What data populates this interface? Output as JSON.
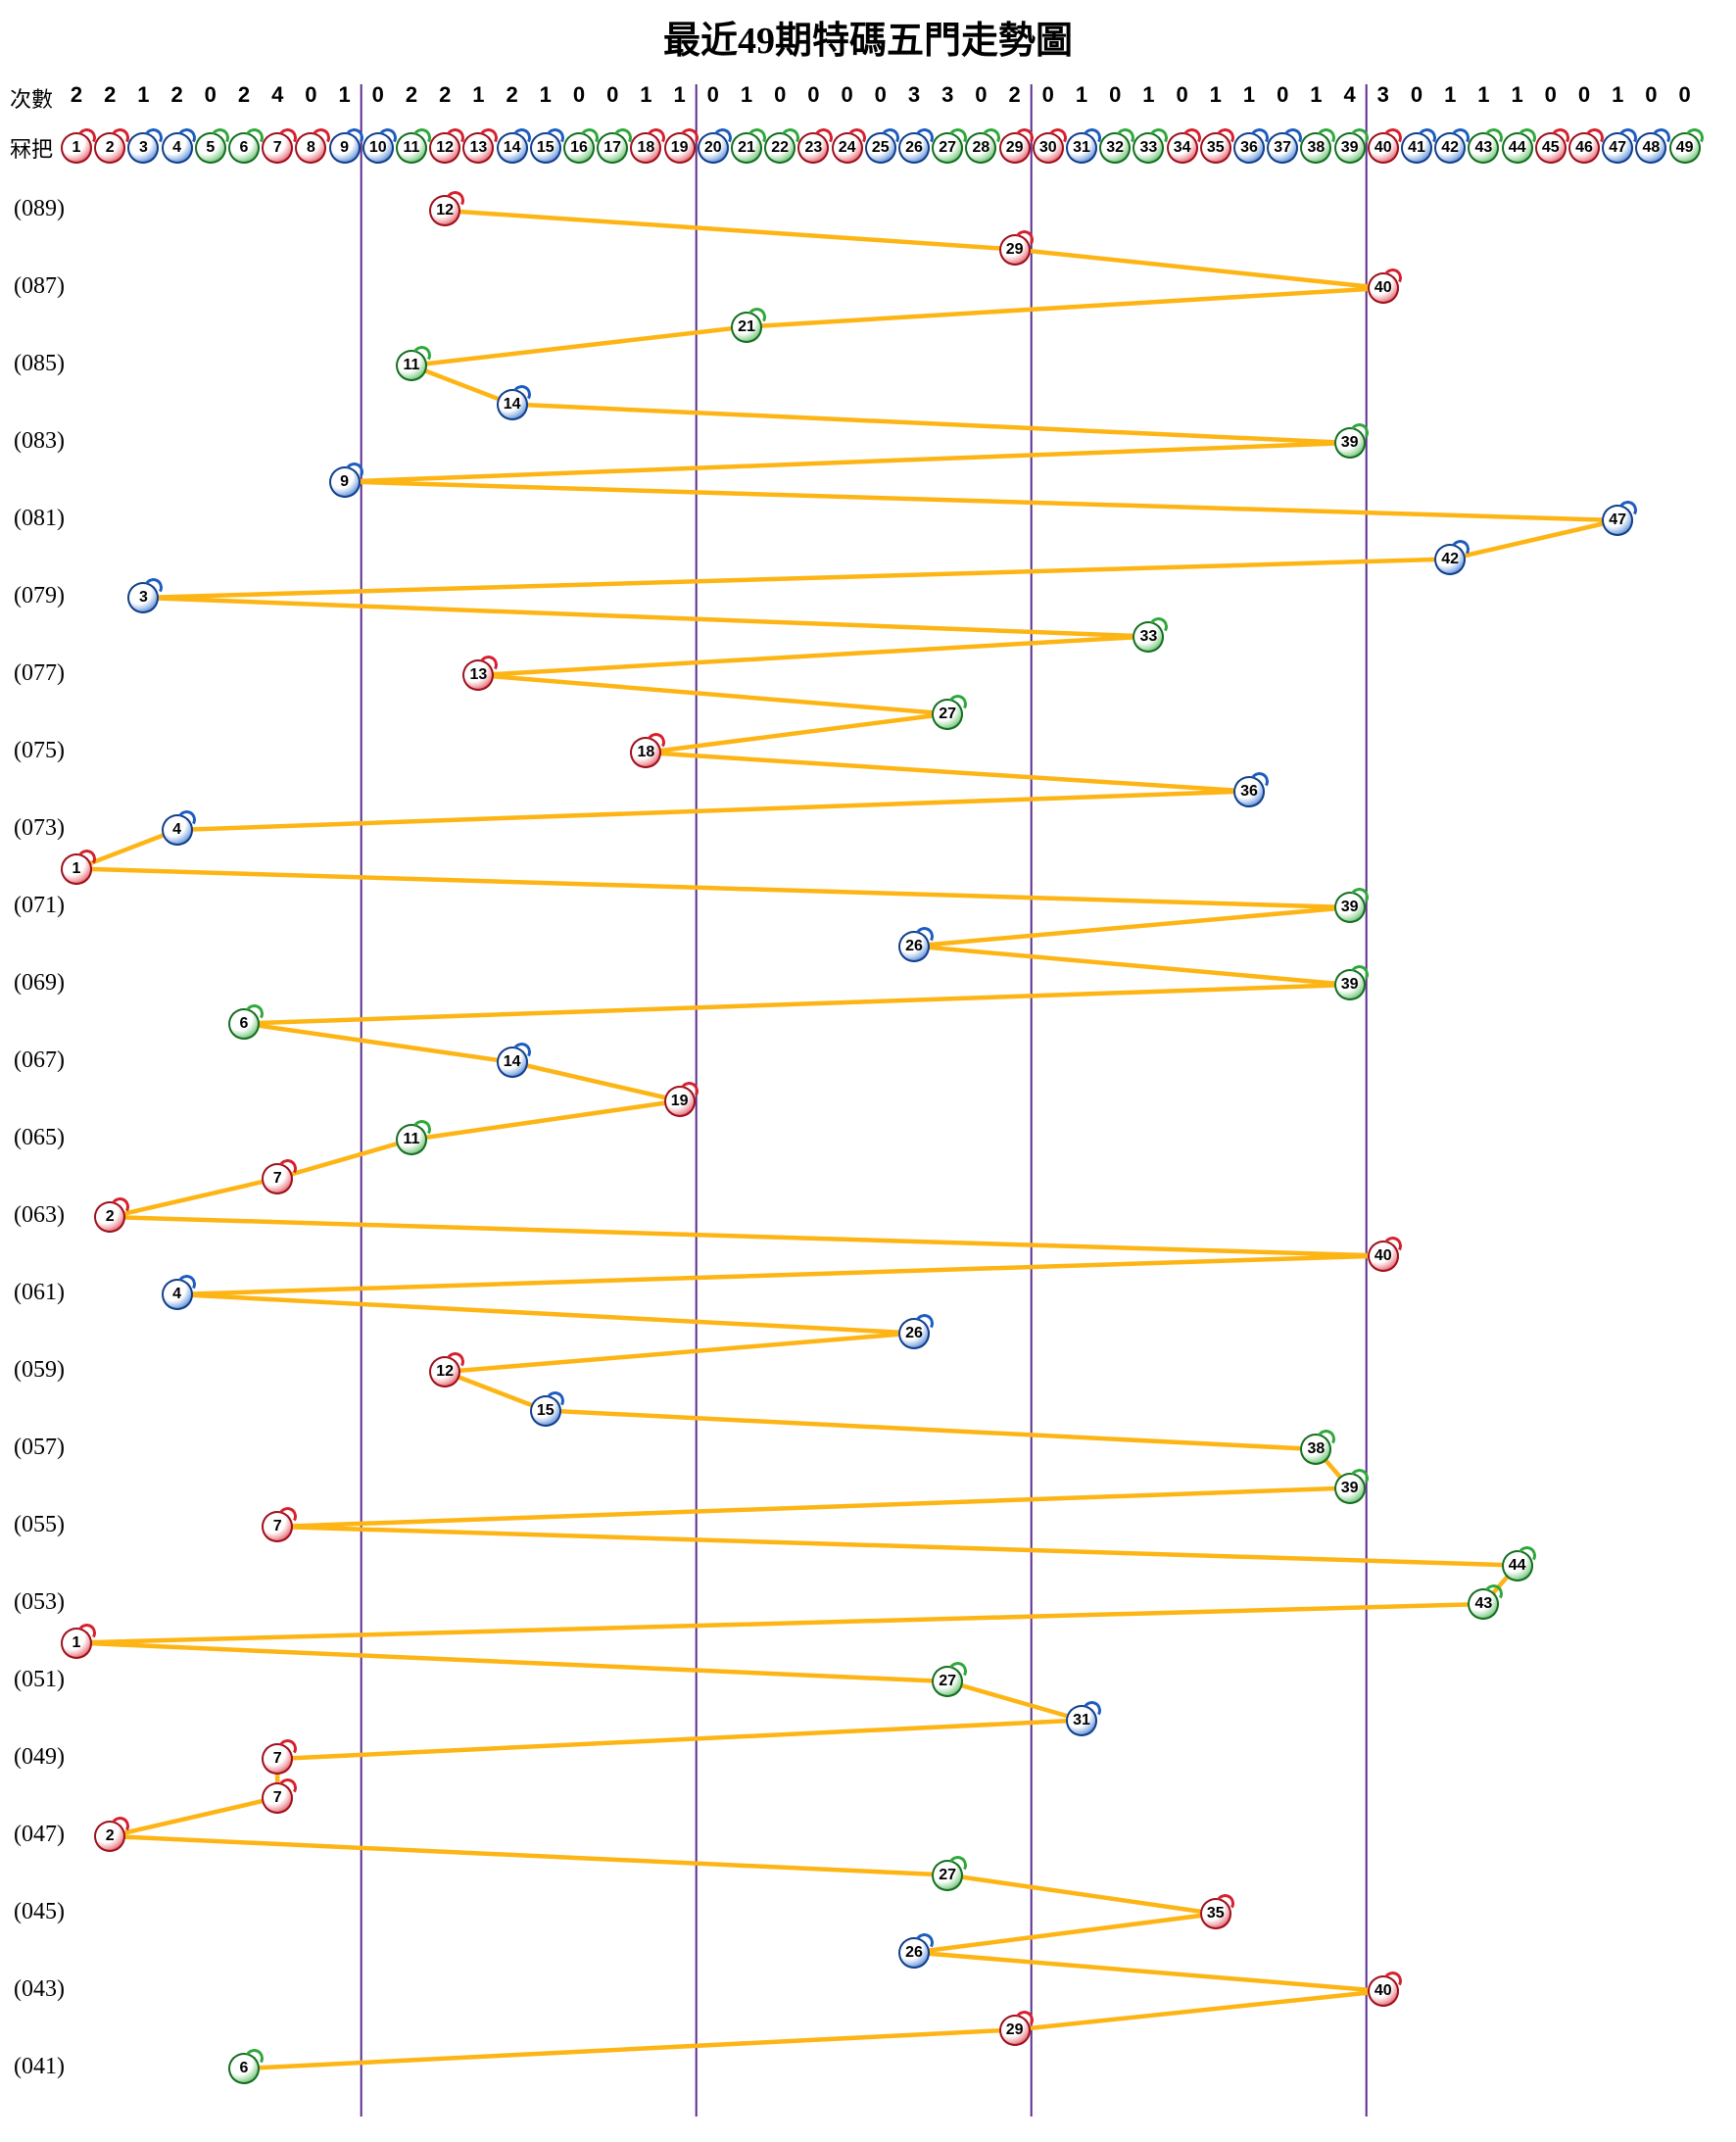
{
  "title": "最近49期特碼五門走勢圖",
  "header": {
    "counts_label": "次數",
    "balls_label": "冧把",
    "counts": [
      2,
      2,
      1,
      2,
      0,
      2,
      4,
      0,
      1,
      0,
      2,
      2,
      1,
      2,
      1,
      0,
      0,
      1,
      1,
      0,
      1,
      0,
      0,
      0,
      0,
      3,
      3,
      0,
      2,
      0,
      1,
      0,
      1,
      0,
      1,
      1,
      0,
      1,
      4,
      3,
      0,
      1,
      1,
      1,
      0,
      0,
      1,
      0,
      0
    ],
    "ball_numbers": [
      1,
      2,
      3,
      4,
      5,
      6,
      7,
      8,
      9,
      10,
      11,
      12,
      13,
      14,
      15,
      16,
      17,
      18,
      19,
      20,
      21,
      22,
      23,
      24,
      25,
      26,
      27,
      28,
      29,
      30,
      31,
      32,
      33,
      34,
      35,
      36,
      37,
      38,
      39,
      40,
      41,
      42,
      43,
      44,
      45,
      46,
      47,
      48,
      49
    ]
  },
  "ball_colors": {
    "red": [
      1,
      2,
      7,
      8,
      12,
      13,
      18,
      19,
      23,
      24,
      29,
      30,
      34,
      35,
      40,
      45,
      46
    ],
    "blue": [
      3,
      4,
      9,
      10,
      14,
      15,
      20,
      25,
      26,
      31,
      36,
      37,
      41,
      42,
      47,
      48
    ],
    "green": [
      5,
      6,
      11,
      16,
      17,
      21,
      22,
      27,
      28,
      32,
      33,
      38,
      39,
      43,
      44,
      49
    ]
  },
  "colors": {
    "red": "#d6212e",
    "blue": "#1d5dc0",
    "green": "#2fa83c",
    "line": "#fdb515",
    "divider": "#5b2c8d",
    "text": "#000000"
  },
  "rows": [
    {
      "period": "(089)",
      "num": 12
    },
    {
      "period": "",
      "num": 29
    },
    {
      "period": "(087)",
      "num": 40
    },
    {
      "period": "",
      "num": 21
    },
    {
      "period": "(085)",
      "num": 11
    },
    {
      "period": "",
      "num": 14
    },
    {
      "period": "(083)",
      "num": 39
    },
    {
      "period": "",
      "num": 9
    },
    {
      "period": "(081)",
      "num": 47
    },
    {
      "period": "",
      "num": 42
    },
    {
      "period": "(079)",
      "num": 3
    },
    {
      "period": "",
      "num": 33
    },
    {
      "period": "(077)",
      "num": 13
    },
    {
      "period": "",
      "num": 27
    },
    {
      "period": "(075)",
      "num": 18
    },
    {
      "period": "",
      "num": 36
    },
    {
      "period": "(073)",
      "num": 4
    },
    {
      "period": "",
      "num": 1
    },
    {
      "period": "(071)",
      "num": 39
    },
    {
      "period": "",
      "num": 26
    },
    {
      "period": "(069)",
      "num": 39
    },
    {
      "period": "",
      "num": 6
    },
    {
      "period": "(067)",
      "num": 14
    },
    {
      "period": "",
      "num": 19
    },
    {
      "period": "(065)",
      "num": 11
    },
    {
      "period": "",
      "num": 7
    },
    {
      "period": "(063)",
      "num": 2
    },
    {
      "period": "",
      "num": 40
    },
    {
      "period": "(061)",
      "num": 4
    },
    {
      "period": "",
      "num": 26
    },
    {
      "period": "(059)",
      "num": 12
    },
    {
      "period": "",
      "num": 15
    },
    {
      "period": "(057)",
      "num": 38
    },
    {
      "period": "",
      "num": 39
    },
    {
      "period": "(055)",
      "num": 7
    },
    {
      "period": "",
      "num": 44
    },
    {
      "period": "(053)",
      "num": 43
    },
    {
      "period": "",
      "num": 1
    },
    {
      "period": "(051)",
      "num": 27
    },
    {
      "period": "",
      "num": 31
    },
    {
      "period": "(049)",
      "num": 7
    },
    {
      "period": "",
      "num": 7
    },
    {
      "period": "(047)",
      "num": 2
    },
    {
      "period": "",
      "num": 27
    },
    {
      "period": "(045)",
      "num": 35
    },
    {
      "period": "",
      "num": 26
    },
    {
      "period": "(043)",
      "num": 40
    },
    {
      "period": "",
      "num": 29
    },
    {
      "period": "(041)",
      "num": 6
    }
  ],
  "chart_data": {
    "type": "line",
    "title": "最近49期特碼五門走勢圖",
    "xlabel": "冧把 (ball number 1-49, split into five sections)",
    "ylabel": "期 (period, 089 at top descending to 041 at bottom)",
    "sections": [
      [
        1,
        9
      ],
      [
        10,
        19
      ],
      [
        20,
        29
      ],
      [
        30,
        39
      ],
      [
        40,
        49
      ]
    ],
    "periods": [
      89,
      88,
      87,
      86,
      85,
      84,
      83,
      82,
      81,
      80,
      79,
      78,
      77,
      76,
      75,
      74,
      73,
      72,
      71,
      70,
      69,
      68,
      67,
      66,
      65,
      64,
      63,
      62,
      61,
      60,
      59,
      58,
      57,
      56,
      55,
      54,
      53,
      52,
      51,
      50,
      49,
      48,
      47,
      46,
      45,
      44,
      43,
      42,
      41
    ],
    "special_numbers": [
      12,
      29,
      40,
      21,
      11,
      14,
      39,
      9,
      47,
      42,
      3,
      33,
      13,
      27,
      18,
      36,
      4,
      1,
      39,
      26,
      39,
      6,
      14,
      19,
      11,
      7,
      2,
      40,
      4,
      26,
      12,
      15,
      38,
      39,
      7,
      44,
      43,
      1,
      27,
      31,
      7,
      7,
      2,
      27,
      35,
      26,
      40,
      29,
      6
    ],
    "counts_per_number": [
      2,
      2,
      1,
      2,
      0,
      2,
      4,
      0,
      1,
      0,
      2,
      2,
      1,
      2,
      1,
      0,
      0,
      1,
      1,
      0,
      1,
      0,
      0,
      0,
      0,
      3,
      3,
      0,
      2,
      0,
      1,
      0,
      1,
      0,
      1,
      1,
      0,
      1,
      4,
      3,
      0,
      1,
      1,
      1,
      0,
      0,
      1,
      0,
      0
    ],
    "grid": "four vertical purple section dividers, no horizontal gridlines",
    "legend_position": "none",
    "line_color": "#fdb515",
    "marker": "colored lottery balls (red/blue/green per Mark Six color groups)"
  }
}
